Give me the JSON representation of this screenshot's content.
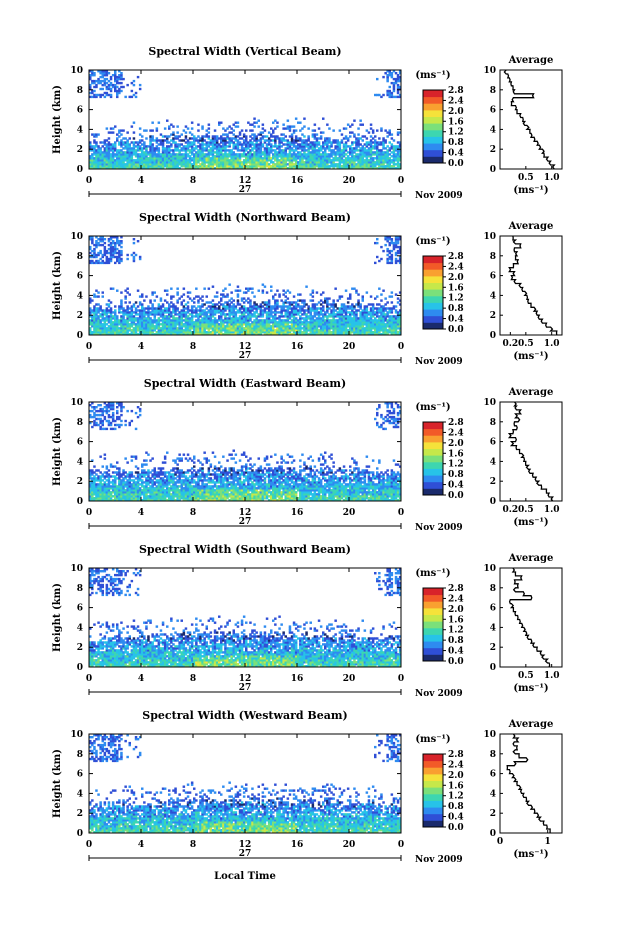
{
  "figure": {
    "xlabel": "Local Time",
    "date_label": "Nov 2009",
    "day_label": "27",
    "ylabel": "Height (km)",
    "colorbar_unit": "(ms⁻¹)",
    "avg_title": "Average",
    "avg_xlabel": "(ms⁻¹)",
    "colormap": [
      "#1a2a6c",
      "#2f4fd6",
      "#2e8bf0",
      "#27c3e8",
      "#3dd6b0",
      "#7be07a",
      "#c6e84a",
      "#f5e23a",
      "#f9a030",
      "#f25a28",
      "#d8232a"
    ]
  },
  "chart_data": [
    {
      "type": "heatmap",
      "title": "Spectral Width (Vertical Beam)",
      "xlim": [
        0,
        24
      ],
      "ylim": [
        0,
        10
      ],
      "xticks": [
        "0",
        "4",
        "8",
        "12",
        "16",
        "20",
        "0"
      ],
      "yticks": [
        "0",
        "2",
        "4",
        "6",
        "8",
        "10"
      ],
      "colorbar_ticks": [
        "0.0",
        "0.4",
        "0.8",
        "1.2",
        "1.6",
        "2.0",
        "2.4",
        "2.8"
      ],
      "avg_xticks": [
        "0.5",
        "1.0"
      ],
      "avg_xlim": [
        0,
        1.2
      ],
      "avg_profile": {
        "height": [
          0.2,
          0.6,
          1.0,
          1.4,
          1.8,
          2.2,
          2.6,
          3.0,
          3.4,
          3.8,
          4.2,
          4.6,
          5.0,
          5.4,
          5.8,
          6.2,
          6.6,
          7.0,
          7.4,
          7.8,
          8.2,
          8.6,
          9.0,
          9.4,
          9.8
        ],
        "value": [
          1.05,
          0.98,
          0.93,
          0.85,
          0.82,
          0.76,
          0.72,
          0.66,
          0.6,
          0.58,
          0.52,
          0.48,
          0.44,
          0.4,
          0.33,
          0.3,
          0.22,
          0.26,
          0.65,
          0.28,
          0.25,
          0.22,
          0.18,
          0.15,
          0.12
        ]
      }
    },
    {
      "type": "heatmap",
      "title": "Spectral Width (Northward Beam)",
      "xlim": [
        0,
        24
      ],
      "ylim": [
        0,
        10
      ],
      "xticks": [
        "0",
        "4",
        "8",
        "12",
        "16",
        "20",
        "0"
      ],
      "yticks": [
        "0",
        "2",
        "4",
        "6",
        "8",
        "10"
      ],
      "colorbar_ticks": [
        "0.0",
        "0.4",
        "0.8",
        "1.2",
        "1.6",
        "2.0",
        "2.4",
        "2.8"
      ],
      "avg_xticks": [
        "0.2",
        "0.5",
        "1.0"
      ],
      "avg_xlim": [
        0,
        1.2
      ],
      "avg_profile": {
        "height": [
          0.2,
          0.6,
          1.0,
          1.4,
          1.8,
          2.2,
          2.6,
          3.0,
          3.4,
          3.8,
          4.2,
          4.6,
          5.0,
          5.4,
          5.8,
          6.2,
          6.6,
          7.0,
          7.4,
          7.8,
          8.2,
          8.6,
          9.0,
          9.4,
          9.8
        ],
        "value": [
          1.1,
          0.98,
          0.9,
          0.82,
          0.76,
          0.72,
          0.66,
          0.6,
          0.55,
          0.52,
          0.48,
          0.44,
          0.4,
          0.3,
          0.22,
          0.28,
          0.18,
          0.26,
          0.35,
          0.3,
          0.33,
          0.28,
          0.4,
          0.3,
          0.25
        ]
      }
    },
    {
      "type": "heatmap",
      "title": "Spectral Width (Eastward Beam)",
      "xlim": [
        0,
        24
      ],
      "ylim": [
        0,
        10
      ],
      "xticks": [
        "0",
        "4",
        "8",
        "12",
        "16",
        "20",
        "0"
      ],
      "yticks": [
        "0",
        "2",
        "4",
        "6",
        "8",
        "10"
      ],
      "colorbar_ticks": [
        "0.0",
        "0.4",
        "0.8",
        "1.2",
        "1.6",
        "2.0",
        "2.4",
        "2.8"
      ],
      "avg_xticks": [
        "0.2",
        "0.5",
        "1.0"
      ],
      "avg_xlim": [
        0,
        1.2
      ],
      "avg_profile": {
        "height": [
          0.2,
          0.6,
          1.0,
          1.4,
          1.8,
          2.2,
          2.6,
          3.0,
          3.4,
          3.8,
          4.2,
          4.6,
          5.0,
          5.4,
          5.8,
          6.2,
          6.6,
          7.0,
          7.4,
          7.8,
          8.2,
          8.6,
          9.0,
          9.4,
          9.8
        ],
        "value": [
          1.02,
          0.95,
          0.9,
          0.8,
          0.75,
          0.7,
          0.64,
          0.58,
          0.55,
          0.5,
          0.46,
          0.42,
          0.38,
          0.32,
          0.22,
          0.3,
          0.18,
          0.25,
          0.32,
          0.28,
          0.35,
          0.3,
          0.4,
          0.32,
          0.28
        ]
      }
    },
    {
      "type": "heatmap",
      "title": "Spectral Width (Southward Beam)",
      "xlim": [
        0,
        24
      ],
      "ylim": [
        0,
        10
      ],
      "xticks": [
        "0",
        "4",
        "8",
        "12",
        "16",
        "20",
        "0"
      ],
      "yticks": [
        "0",
        "2",
        "4",
        "6",
        "8",
        "10"
      ],
      "colorbar_ticks": [
        "0.0",
        "0.4",
        "0.8",
        "1.2",
        "1.6",
        "2.0",
        "2.4",
        "2.8"
      ],
      "avg_xticks": [
        "0.5",
        "1.0"
      ],
      "avg_xlim": [
        0,
        1.2
      ],
      "avg_profile": {
        "height": [
          0.2,
          0.6,
          1.0,
          1.4,
          1.8,
          2.2,
          2.6,
          3.0,
          3.4,
          3.8,
          4.2,
          4.6,
          5.0,
          5.4,
          5.8,
          6.2,
          6.6,
          7.0,
          7.4,
          7.8,
          8.2,
          8.6,
          9.0,
          9.4,
          9.8
        ],
        "value": [
          0.95,
          0.92,
          0.85,
          0.8,
          0.72,
          0.66,
          0.6,
          0.55,
          0.5,
          0.46,
          0.42,
          0.38,
          0.34,
          0.3,
          0.26,
          0.22,
          0.2,
          0.6,
          0.45,
          0.3,
          0.35,
          0.28,
          0.42,
          0.3,
          0.25
        ]
      }
    },
    {
      "type": "heatmap",
      "title": "Spectral Width (Westward Beam)",
      "xlim": [
        0,
        24
      ],
      "ylim": [
        0,
        10
      ],
      "xticks": [
        "0",
        "4",
        "8",
        "12",
        "16",
        "20",
        "0"
      ],
      "yticks": [
        "0",
        "2",
        "4",
        "6",
        "8",
        "10"
      ],
      "colorbar_ticks": [
        "0.0",
        "0.4",
        "0.8",
        "1.2",
        "1.6",
        "2.0",
        "2.4",
        "2.8"
      ],
      "avg_xticks": [
        "0",
        "1"
      ],
      "avg_xlim": [
        0,
        1.3
      ],
      "avg_profile": {
        "height": [
          0.2,
          0.6,
          1.0,
          1.4,
          1.8,
          2.2,
          2.6,
          3.0,
          3.4,
          3.8,
          4.2,
          4.6,
          5.0,
          5.4,
          5.8,
          6.2,
          6.6,
          7.0,
          7.4,
          7.8,
          8.2,
          8.6,
          9.0,
          9.4,
          9.8
        ],
        "value": [
          1.05,
          0.98,
          0.92,
          0.85,
          0.78,
          0.72,
          0.65,
          0.6,
          0.55,
          0.5,
          0.45,
          0.4,
          0.36,
          0.3,
          0.26,
          0.2,
          0.15,
          0.3,
          0.55,
          0.4,
          0.32,
          0.36,
          0.3,
          0.38,
          0.28
        ]
      }
    }
  ]
}
